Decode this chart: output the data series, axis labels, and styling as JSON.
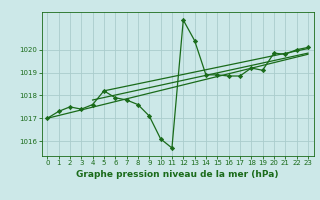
{
  "x": [
    0,
    1,
    2,
    3,
    4,
    5,
    6,
    7,
    8,
    9,
    10,
    11,
    12,
    13,
    14,
    15,
    16,
    17,
    18,
    19,
    20,
    21,
    22,
    23
  ],
  "y_main": [
    1017.0,
    1017.3,
    1017.5,
    1017.4,
    1017.6,
    1018.2,
    1017.9,
    1017.8,
    1017.6,
    1017.1,
    1016.1,
    1015.7,
    1021.3,
    1020.4,
    1018.9,
    1018.9,
    1018.85,
    1018.85,
    1019.2,
    1019.1,
    1019.85,
    1019.8,
    1020.0,
    1020.1
  ],
  "y_trend1_x": [
    0,
    23
  ],
  "y_trend1_y": [
    1017.0,
    1019.8
  ],
  "y_trend2_x": [
    4,
    23
  ],
  "y_trend2_y": [
    1017.8,
    1019.85
  ],
  "y_trend3_x": [
    5,
    23
  ],
  "y_trend3_y": [
    1018.2,
    1020.05
  ],
  "line_color": "#1a6b1a",
  "bg_color": "#cce8e8",
  "grid_color": "#aacccc",
  "title": "Graphe pression niveau de la mer (hPa)",
  "xlim": [
    -0.5,
    23.5
  ],
  "ylim": [
    1015.35,
    1021.65
  ],
  "yticks": [
    1016,
    1017,
    1018,
    1019,
    1020
  ],
  "xticks": [
    0,
    1,
    2,
    3,
    4,
    5,
    6,
    7,
    8,
    9,
    10,
    11,
    12,
    13,
    14,
    15,
    16,
    17,
    18,
    19,
    20,
    21,
    22,
    23
  ],
  "marker": "D",
  "markersize": 2.2,
  "linewidth": 0.9,
  "title_fontsize": 6.5,
  "tick_fontsize": 5.0
}
